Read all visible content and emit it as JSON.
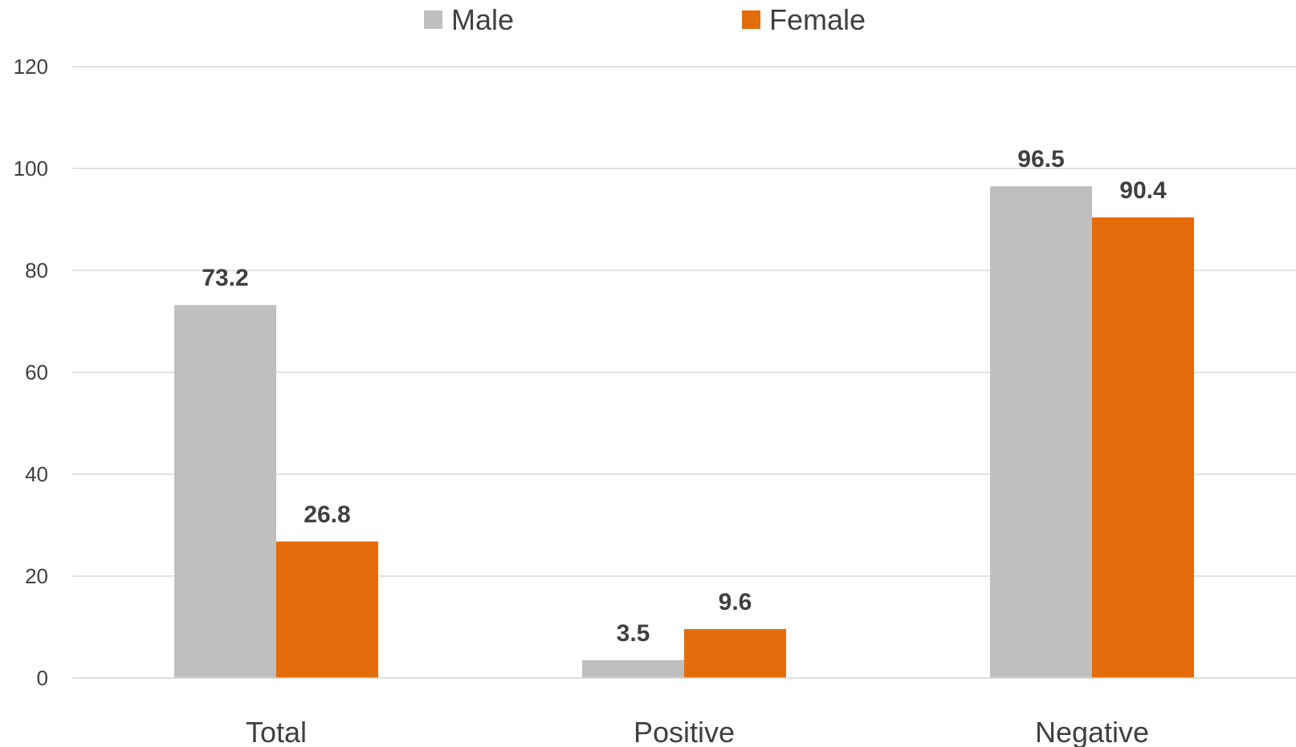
{
  "chart_data": {
    "type": "bar",
    "categories": [
      "Total",
      "Positive",
      "Negative"
    ],
    "series": [
      {
        "name": "Male",
        "values": [
          73.2,
          3.5,
          96.5
        ],
        "color": "#bfbfbf"
      },
      {
        "name": "Female",
        "values": [
          26.8,
          9.6,
          90.4
        ],
        "color": "#e46c0a"
      }
    ],
    "ylim": [
      0,
      120
    ],
    "yticks": [
      0,
      20,
      40,
      60,
      80,
      100,
      120
    ],
    "grid": true,
    "legend": "top-center",
    "data_labels": true
  }
}
